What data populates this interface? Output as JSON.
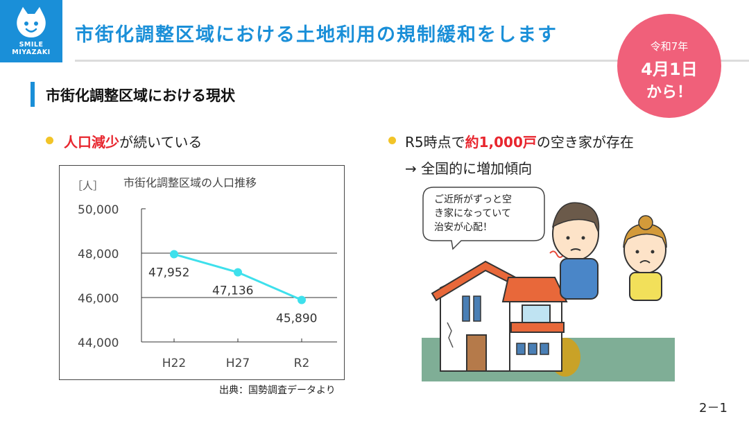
{
  "logo": {
    "line1": "SMILE",
    "line2": "MIYAZAKI"
  },
  "title": "市街化調整区域における土地利用の規制緩和をします",
  "badge": {
    "line1": "令和7年",
    "line2": "4月1日",
    "line3": "から！"
  },
  "section_title": "市街化調整区域における現状",
  "left_bullet": {
    "highlight": "人口減少",
    "rest": "が続いている"
  },
  "right_bullet": {
    "prefix": "R5時点で",
    "highlight": "約1,000戸",
    "suffix": "の空き家が存在",
    "line2": "→ 全国的に増加傾向"
  },
  "chart_data": {
    "type": "line",
    "title": "市街化調整区域の人口推移",
    "ylabel": "［人］",
    "categories": [
      "H22",
      "H27",
      "R2"
    ],
    "values": [
      47952,
      47136,
      45890
    ],
    "value_labels": [
      "47,952",
      "47,136",
      "45,890"
    ],
    "yticks": [
      "50,000",
      "48,000",
      "46,000",
      "44,000"
    ],
    "ylim": [
      44000,
      50000
    ],
    "line_color": "#3ee0ec"
  },
  "source": "出典：国勢調査データより",
  "speech_bubble": {
    "line1": "ご近所がずっと空",
    "line2": "き家になっていて",
    "line3": "治安が心配！"
  },
  "page_number": "2－1",
  "colors": {
    "accent": "#1a8fd8",
    "badge": "#f0607a",
    "highlight": "#e8262e",
    "bullet": "#f2c428"
  }
}
